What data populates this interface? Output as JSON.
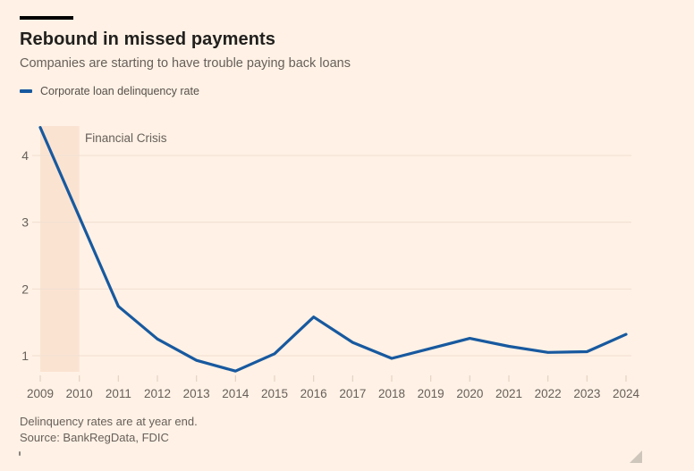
{
  "colors": {
    "paper": "#fff1e5",
    "ink": "#21201e",
    "muted": "#67605a",
    "line": "#17599f",
    "band": "#fbe3d2",
    "grid": "#f0e0d1",
    "tick": "#e4d3c4",
    "rule": "#000000",
    "handle": "#cfc6bb"
  },
  "header": {
    "title": "Rebound in missed payments",
    "subtitle": "Companies are starting to have trouble paying back loans"
  },
  "legend": {
    "label": "Corporate loan delinquency rate"
  },
  "chart_data": {
    "type": "line",
    "title": "Rebound in missed payments",
    "subtitle": "Companies are starting to have trouble paying back loans",
    "x": [
      2009,
      2010,
      2011,
      2012,
      2013,
      2014,
      2015,
      2016,
      2017,
      2018,
      2019,
      2020,
      2021,
      2022,
      2023,
      2024
    ],
    "series": [
      {
        "name": "Corporate loan delinquency rate",
        "values": [
          4.42,
          3.08,
          1.74,
          1.25,
          0.93,
          0.77,
          1.03,
          1.58,
          1.2,
          0.96,
          1.11,
          1.26,
          1.14,
          1.05,
          1.06,
          1.32
        ]
      }
    ],
    "yticks": [
      1,
      2,
      3,
      4
    ],
    "ylim": [
      0.7,
      4.48
    ],
    "grid": "horizontal",
    "legend_position": "top-left",
    "annotations": [
      {
        "type": "band",
        "text": "Financial Crisis",
        "x_from": 2009,
        "x_to": 2010
      }
    ]
  },
  "footer": {
    "note": "Delinquency rates are at year end.",
    "source": "Source: BankRegData, FDIC"
  }
}
